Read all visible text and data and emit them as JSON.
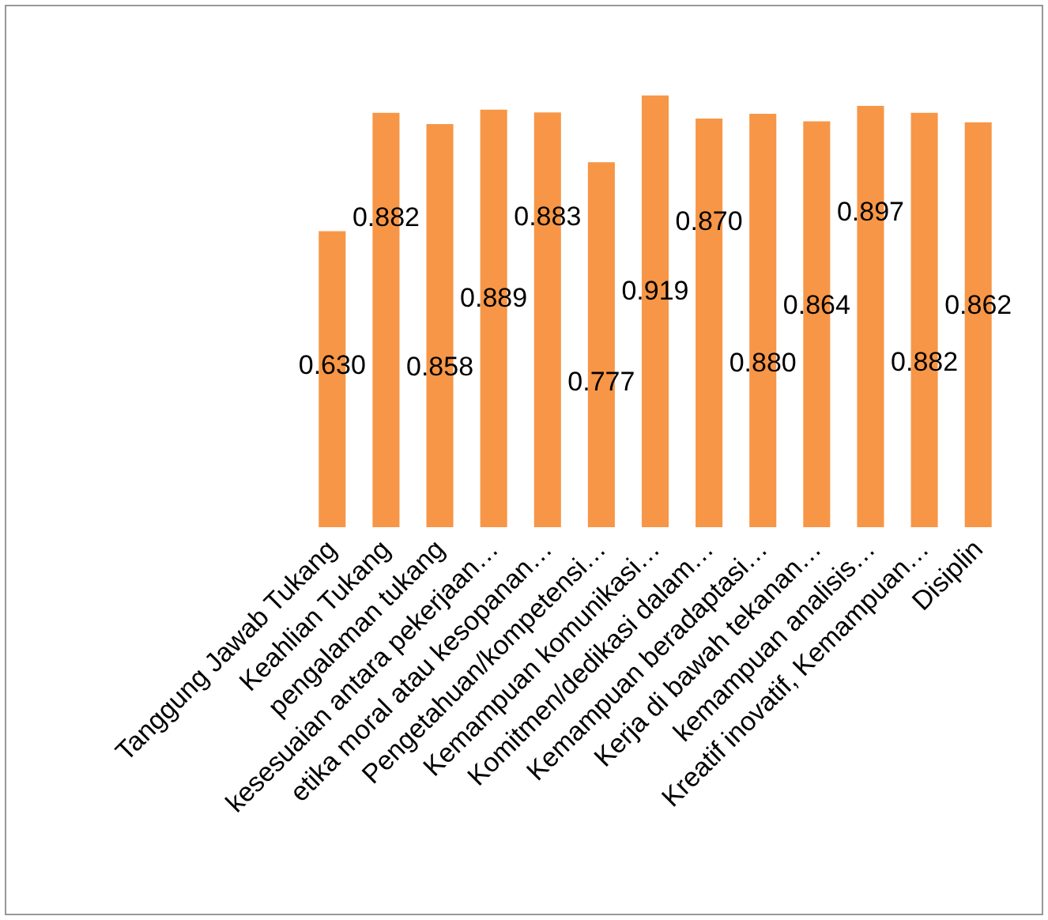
{
  "chart_data": {
    "type": "bar",
    "categories": [
      "Tanggung Jawab Tukang",
      "Keahlian Tukang",
      "pengalaman tukang",
      "kesesuaian antara pekerjaan…",
      "etika moral atau kesopanan…",
      "Pengetahuan/kompetensi…",
      "Kemampuan komunikasi…",
      "Komitmen/dedikasi dalam…",
      "Kemampuan beradaptasi…",
      "Kerja di bawah tekanan…",
      "kemampuan analisis…",
      "Kreatif inovatif, Kemampuan…",
      "Disiplin"
    ],
    "values": [
      0.63,
      0.882,
      0.858,
      0.889,
      0.883,
      0.777,
      0.919,
      0.87,
      0.88,
      0.864,
      0.897,
      0.882,
      0.862
    ],
    "value_labels": [
      "0.630",
      "0.882",
      "0.858",
      "0.889",
      "0.883",
      "0.777",
      "0.919",
      "0.870",
      "0.880",
      "0.864",
      "0.897",
      "0.882",
      "0.862"
    ],
    "color": "#f79646",
    "grid": false
  }
}
